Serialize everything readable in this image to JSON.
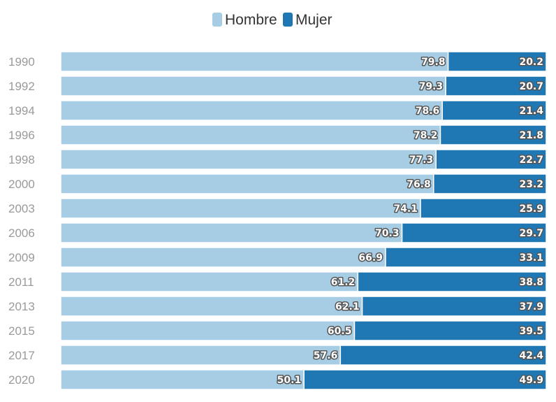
{
  "chart_data": {
    "type": "bar",
    "orientation": "horizontal",
    "stacked": true,
    "title": "",
    "xlabel": "",
    "ylabel": "",
    "xlim": [
      0,
      100
    ],
    "grid": false,
    "legend_position": "top-center",
    "categories": [
      "1990",
      "1992",
      "1994",
      "1996",
      "1998",
      "2000",
      "2003",
      "2006",
      "2009",
      "2011",
      "2013",
      "2015",
      "2017",
      "2020"
    ],
    "series": [
      {
        "name": "Hombre",
        "color": "#a6cde3",
        "values": [
          79.8,
          79.3,
          78.6,
          78.2,
          77.3,
          76.8,
          74.1,
          70.3,
          66.9,
          61.2,
          62.1,
          60.5,
          57.6,
          50.1
        ]
      },
      {
        "name": "Mujer",
        "color": "#1f78b4",
        "values": [
          20.2,
          20.7,
          21.4,
          21.8,
          22.7,
          23.2,
          25.9,
          29.7,
          33.1,
          38.8,
          37.9,
          39.5,
          42.4,
          49.9
        ]
      }
    ]
  }
}
